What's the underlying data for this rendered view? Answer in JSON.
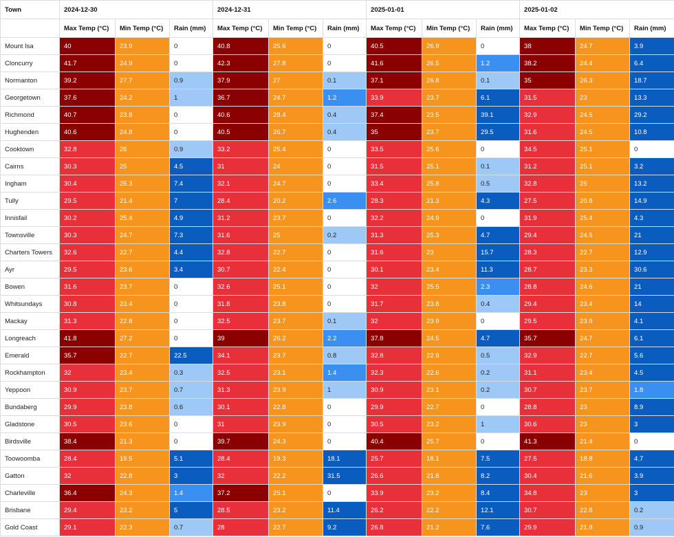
{
  "header": {
    "town_label": "Town",
    "dates": [
      "2024-12-30",
      "2024-12-31",
      "2025-01-01",
      "2025-01-02"
    ],
    "columns": [
      "Max Temp (°C)",
      "Min Temp (°C)",
      "Rain (mm)"
    ]
  },
  "colors": {
    "max_hot": "#8b0000",
    "max_warm": "#e8303b",
    "min_temp": "#f7941d",
    "rain_none": "#ffffff",
    "rain_light": "#9ec8f6",
    "rain_mid": "#3b8ff0",
    "rain_heavy": "#0b5cbf"
  },
  "rows": [
    {
      "town": "Mount Isa",
      "d": [
        [
          "40",
          "23.9",
          "0"
        ],
        [
          "40.8",
          "25.6",
          "0"
        ],
        [
          "40.5",
          "26.9",
          "0"
        ],
        [
          "38",
          "24.7",
          "3.9"
        ]
      ]
    },
    {
      "town": "Cloncurry",
      "d": [
        [
          "41.7",
          "24.9",
          "0"
        ],
        [
          "42.3",
          "27.8",
          "0"
        ],
        [
          "41.6",
          "26.5",
          "1.2"
        ],
        [
          "38.2",
          "24.4",
          "6.4"
        ]
      ]
    },
    {
      "town": "Normanton",
      "d": [
        [
          "39.2",
          "27.7",
          "0.9"
        ],
        [
          "37.9",
          "27",
          "0.1"
        ],
        [
          "37.1",
          "26.8",
          "0.1"
        ],
        [
          "35",
          "26.3",
          "18.7"
        ]
      ]
    },
    {
      "town": "Georgetown",
      "d": [
        [
          "37.6",
          "24.2",
          "1"
        ],
        [
          "36.7",
          "24.7",
          "1.2"
        ],
        [
          "33.9",
          "23.7",
          "6.1"
        ],
        [
          "31.5",
          "23",
          "13.3"
        ]
      ]
    },
    {
      "town": "Richmond",
      "d": [
        [
          "40.7",
          "23.8",
          "0"
        ],
        [
          "40.6",
          "28.4",
          "0.4"
        ],
        [
          "37.4",
          "23.5",
          "39.1"
        ],
        [
          "32.9",
          "24.5",
          "29.2"
        ]
      ]
    },
    {
      "town": "Hughenden",
      "d": [
        [
          "40.6",
          "24.8",
          "0"
        ],
        [
          "40.5",
          "26.7",
          "0.4"
        ],
        [
          "35",
          "23.7",
          "29.5"
        ],
        [
          "31.6",
          "24.5",
          "10.8"
        ]
      ]
    },
    {
      "town": "Cooktown",
      "d": [
        [
          "32.8",
          "26",
          "0.9"
        ],
        [
          "33.2",
          "25.4",
          "0"
        ],
        [
          "33.5",
          "25.6",
          "0"
        ],
        [
          "34.5",
          "25.1",
          "0"
        ]
      ]
    },
    {
      "town": "Cairns",
      "d": [
        [
          "30.3",
          "25",
          "4.5"
        ],
        [
          "31",
          "24",
          "0"
        ],
        [
          "31.5",
          "25.1",
          "0.1"
        ],
        [
          "31.2",
          "25.1",
          "3.2"
        ]
      ]
    },
    {
      "town": "Ingham",
      "d": [
        [
          "30.4",
          "25.3",
          "7.4"
        ],
        [
          "32.1",
          "24.7",
          "0"
        ],
        [
          "33.4",
          "25.8",
          "0.5"
        ],
        [
          "32.8",
          "25",
          "13.2"
        ]
      ]
    },
    {
      "town": "Tully",
      "d": [
        [
          "29.5",
          "21.4",
          "7"
        ],
        [
          "28.4",
          "20.2",
          "2.6"
        ],
        [
          "28.3",
          "21.3",
          "4.3"
        ],
        [
          "27.5",
          "20.8",
          "14.9"
        ]
      ]
    },
    {
      "town": "Innisfail",
      "d": [
        [
          "30.2",
          "25.4",
          "4.9"
        ],
        [
          "31.2",
          "23.7",
          "0"
        ],
        [
          "32.2",
          "24.9",
          "0"
        ],
        [
          "31.9",
          "25.4",
          "4.3"
        ]
      ]
    },
    {
      "town": "Townsville",
      "d": [
        [
          "30.3",
          "24.7",
          "7.3"
        ],
        [
          "31.6",
          "25",
          "0.2"
        ],
        [
          "31.3",
          "25.3",
          "4.7"
        ],
        [
          "29.4",
          "24.5",
          "21"
        ]
      ]
    },
    {
      "town": "Charters Towers",
      "d": [
        [
          "32.6",
          "22.7",
          "4.4"
        ],
        [
          "32.8",
          "22.7",
          "0"
        ],
        [
          "31.6",
          "23",
          "15.7"
        ],
        [
          "28.3",
          "22.7",
          "12.9"
        ]
      ]
    },
    {
      "town": "Ayr",
      "d": [
        [
          "29.5",
          "23.6",
          "3.4"
        ],
        [
          "30.7",
          "22.4",
          "0"
        ],
        [
          "30.1",
          "23.4",
          "11.3"
        ],
        [
          "28.7",
          "23.3",
          "30.6"
        ]
      ]
    },
    {
      "town": "Bowen",
      "d": [
        [
          "31.6",
          "23.7",
          "0"
        ],
        [
          "32.6",
          "25.1",
          "0"
        ],
        [
          "32",
          "25.5",
          "2.3"
        ],
        [
          "28.8",
          "24.6",
          "21"
        ]
      ]
    },
    {
      "town": "Whitsundays",
      "d": [
        [
          "30.8",
          "23.4",
          "0"
        ],
        [
          "31.8",
          "23.8",
          "0"
        ],
        [
          "31.7",
          "23.8",
          "0.4"
        ],
        [
          "29.4",
          "23.4",
          "14"
        ]
      ]
    },
    {
      "town": "Mackay",
      "d": [
        [
          "31.3",
          "22.8",
          "0"
        ],
        [
          "32.5",
          "23.7",
          "0.1"
        ],
        [
          "32",
          "23.9",
          "0"
        ],
        [
          "29.5",
          "23.9",
          "4.1"
        ]
      ]
    },
    {
      "town": "Longreach",
      "d": [
        [
          "41.8",
          "27.2",
          "0"
        ],
        [
          "39",
          "26.2",
          "2.2"
        ],
        [
          "37.8",
          "24.5",
          "4.7"
        ],
        [
          "35.7",
          "24.7",
          "6.1"
        ]
      ]
    },
    {
      "town": "Emerald",
      "d": [
        [
          "35.7",
          "22.7",
          "22.5"
        ],
        [
          "34.1",
          "23.7",
          "0.8"
        ],
        [
          "32.8",
          "22.9",
          "0.5"
        ],
        [
          "32.9",
          "22.7",
          "5.6"
        ]
      ]
    },
    {
      "town": "Rockhampton",
      "d": [
        [
          "32",
          "23.4",
          "0.3"
        ],
        [
          "32.5",
          "23.1",
          "1.4"
        ],
        [
          "32.3",
          "22.6",
          "0.2"
        ],
        [
          "31.1",
          "23.4",
          "4.5"
        ]
      ]
    },
    {
      "town": "Yeppoon",
      "d": [
        [
          "30.9",
          "23.7",
          "0.7"
        ],
        [
          "31.3",
          "23.9",
          "1"
        ],
        [
          "30.9",
          "23.1",
          "0.2"
        ],
        [
          "30.7",
          "23.7",
          "1.8"
        ]
      ]
    },
    {
      "town": "Bundaberg",
      "d": [
        [
          "29.9",
          "23.8",
          "0.6"
        ],
        [
          "30.1",
          "22.8",
          "0"
        ],
        [
          "29.9",
          "22.7",
          "0"
        ],
        [
          "28.8",
          "23",
          "8.9"
        ]
      ]
    },
    {
      "town": "Gladstone",
      "d": [
        [
          "30.5",
          "23.6",
          "0"
        ],
        [
          "31",
          "23.9",
          "0"
        ],
        [
          "30.5",
          "23.2",
          "1"
        ],
        [
          "30.6",
          "23",
          "3"
        ]
      ]
    },
    {
      "town": "Birdsville",
      "d": [
        [
          "38.4",
          "21.3",
          "0"
        ],
        [
          "39.7",
          "24.3",
          "0"
        ],
        [
          "40.4",
          "25.7",
          "0"
        ],
        [
          "41.3",
          "21.4",
          "0"
        ]
      ]
    },
    {
      "town": "Toowoomba",
      "d": [
        [
          "28.4",
          "19.5",
          "5.1"
        ],
        [
          "28.4",
          "19.3",
          "18.1"
        ],
        [
          "25.7",
          "18.1",
          "7.5"
        ],
        [
          "27.5",
          "18.8",
          "4.7"
        ]
      ]
    },
    {
      "town": "Gatton",
      "d": [
        [
          "32",
          "22.8",
          "3"
        ],
        [
          "32",
          "22.2",
          "31.5"
        ],
        [
          "26.6",
          "21.8",
          "8.2"
        ],
        [
          "30.4",
          "21.6",
          "3.9"
        ]
      ]
    },
    {
      "town": "Charleville",
      "d": [
        [
          "36.4",
          "24.3",
          "1.4"
        ],
        [
          "37.2",
          "25.1",
          "0"
        ],
        [
          "33.9",
          "23.2",
          "8.4"
        ],
        [
          "34.8",
          "23",
          "3"
        ]
      ]
    },
    {
      "town": "Brisbane",
      "d": [
        [
          "29.4",
          "23.2",
          "5"
        ],
        [
          "28.5",
          "23.2",
          "11.4"
        ],
        [
          "26.2",
          "22.2",
          "12.1"
        ],
        [
          "30.7",
          "22.8",
          "0.2"
        ]
      ]
    },
    {
      "town": "Gold Coast",
      "d": [
        [
          "29.1",
          "22.3",
          "0.7"
        ],
        [
          "28",
          "22.7",
          "9.2"
        ],
        [
          "26.8",
          "21.2",
          "7.6"
        ],
        [
          "29.9",
          "21.8",
          "0.9"
        ]
      ]
    }
  ]
}
